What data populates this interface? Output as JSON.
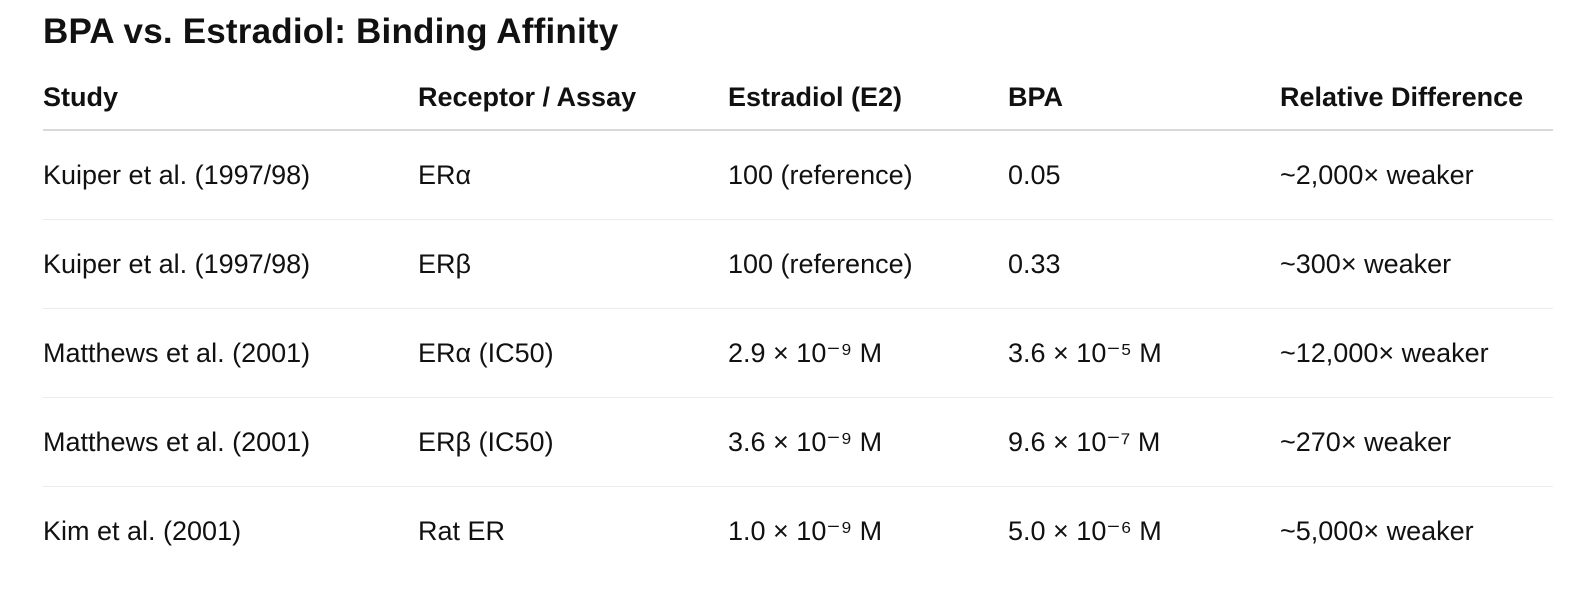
{
  "header": {
    "title": "BPA vs. Estradiol: Binding Affinity"
  },
  "table": {
    "columns": [
      "Study",
      "Receptor / Assay",
      "Estradiol (E2)",
      "BPA",
      "Relative Difference"
    ],
    "rows": [
      [
        "Kuiper et al. (1997/98)",
        "ERα",
        "100 (reference)",
        "0.05",
        "~2,000× weaker"
      ],
      [
        "Kuiper et al. (1997/98)",
        "ERβ",
        "100 (reference)",
        "0.33",
        "~300× weaker"
      ],
      [
        "Matthews et al. (2001)",
        "ERα (IC50)",
        "2.9 × 10⁻⁹ M",
        "3.6 × 10⁻⁵ M",
        "~12,000× weaker"
      ],
      [
        "Matthews et al. (2001)",
        "ERβ (IC50)",
        "3.6 × 10⁻⁹ M",
        "9.6 × 10⁻⁷ M",
        "~270× weaker"
      ],
      [
        "Kim et al. (2001)",
        "Rat ER",
        "1.0 × 10⁻⁹ M",
        "5.0 × 10⁻⁶ M",
        "~5,000× weaker"
      ]
    ]
  }
}
